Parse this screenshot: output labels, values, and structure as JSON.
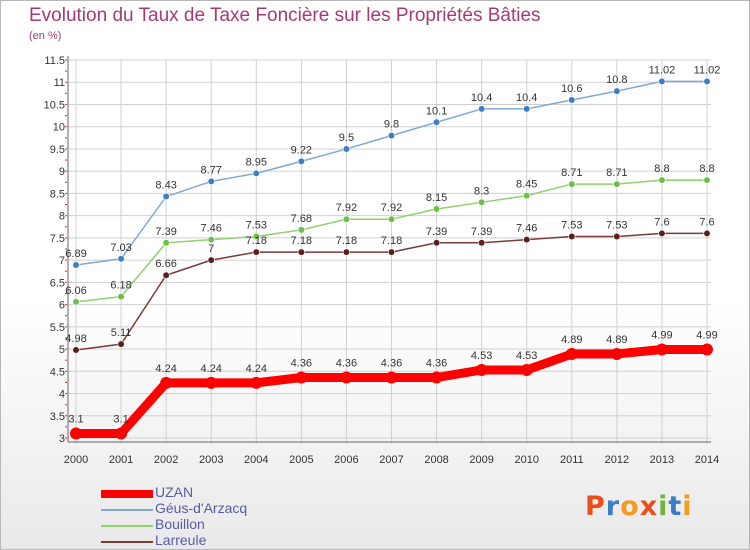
{
  "header": {
    "title": "Evolution du Taux de Taxe Foncière sur les Propriétés Bâties",
    "unit_note": "(en %)"
  },
  "logo": {
    "text": "Proxiti"
  },
  "colors": {
    "title": "#a33b74",
    "axis_text": "#333333",
    "grid": "#d0d0d0",
    "legend_text": "#5a5aa8"
  },
  "chart_data": {
    "type": "line",
    "title": "Evolution du Taux de Taxe Foncière sur les Propriétés Bâties",
    "ylabel": "(en %)",
    "xlabel": "",
    "ylim": [
      3,
      11.5
    ],
    "y_ticks": [
      "3",
      "3.5",
      "4",
      "4.5",
      "5",
      "5.5",
      "6",
      "6.5",
      "7",
      "7.5",
      "8",
      "8.5",
      "9",
      "9.5",
      "10",
      "10.5",
      "11",
      "11.5"
    ],
    "x": [
      "2000",
      "2001",
      "2002",
      "2003",
      "2004",
      "2005",
      "2006",
      "2007",
      "2008",
      "2009",
      "2010",
      "2011",
      "2012",
      "2013",
      "2014"
    ],
    "legend_position": "bottom-left",
    "series": [
      {
        "name": "UZAN",
        "color": "#ff0000",
        "marker_color": "#ff0000",
        "emphasis": true,
        "values": [
          3.1,
          3.1,
          4.24,
          4.24,
          4.24,
          4.36,
          4.36,
          4.36,
          4.36,
          4.53,
          4.53,
          4.89,
          4.89,
          4.99,
          4.99
        ],
        "labels": [
          "3.1",
          "3.1",
          "4.24",
          "4.24",
          "4.24",
          "4.36",
          "4.36",
          "4.36",
          "4.36",
          "4.53",
          "4.53",
          "4.89",
          "4.89",
          "4.99",
          "4.99"
        ]
      },
      {
        "name": "Géus-d'Arzacq",
        "color": "#7fa9d6",
        "marker_color": "#3d7fc1",
        "emphasis": false,
        "values": [
          6.89,
          7.03,
          8.43,
          8.77,
          8.95,
          9.22,
          9.5,
          9.8,
          10.1,
          10.4,
          10.4,
          10.6,
          10.8,
          11.02,
          11.02
        ],
        "labels": [
          "6.89",
          "7.03",
          "8.43",
          "8.77",
          "8.95",
          "9.22",
          "9.5",
          "9.8",
          "10.1",
          "10.4",
          "10.4",
          "10.6",
          "10.8",
          "11.02",
          "11.02"
        ]
      },
      {
        "name": "Bouillon",
        "color": "#8fd16a",
        "marker_color": "#6cc04a",
        "emphasis": false,
        "values": [
          6.06,
          6.18,
          7.39,
          7.46,
          7.53,
          7.68,
          7.92,
          7.92,
          8.15,
          8.3,
          8.45,
          8.71,
          8.71,
          8.8,
          8.8
        ],
        "labels": [
          "6.06",
          "6.18",
          "7.39",
          "7.46",
          "7.53",
          "7.68",
          "7.92",
          "7.92",
          "8.15",
          "8.3",
          "8.45",
          "8.71",
          "8.71",
          "8.8",
          "8.8"
        ]
      },
      {
        "name": "Larreule",
        "color": "#7a3a3a",
        "marker_color": "#5c1f1f",
        "emphasis": false,
        "values": [
          4.98,
          5.11,
          6.66,
          7,
          7.18,
          7.18,
          7.18,
          7.18,
          7.39,
          7.39,
          7.46,
          7.53,
          7.53,
          7.6,
          7.6
        ],
        "labels": [
          "4.98",
          "5.11",
          "6.66",
          "7",
          "7.18",
          "7.18",
          "7.18",
          "7.18",
          "7.39",
          "7.39",
          "7.46",
          "7.53",
          "7.53",
          "7.6",
          "7.6"
        ]
      }
    ]
  }
}
